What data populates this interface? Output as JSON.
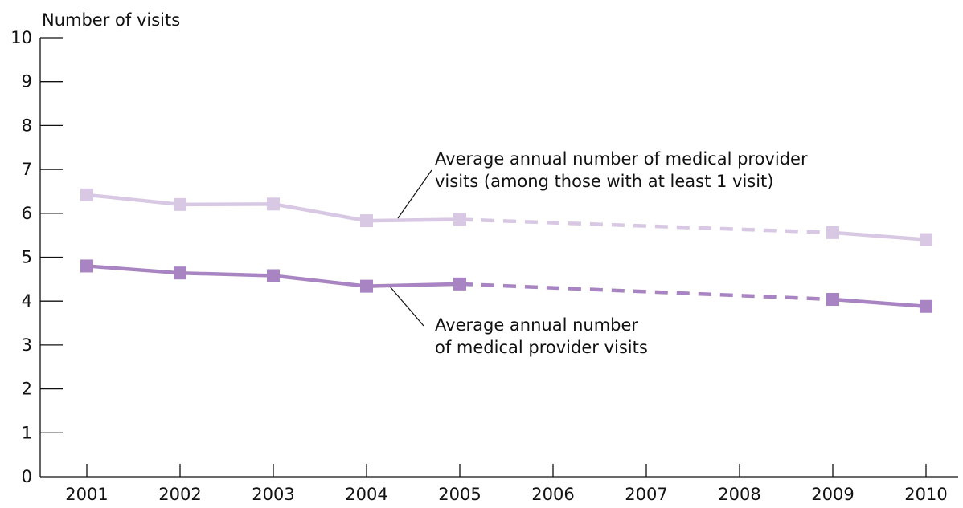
{
  "chart_data": {
    "type": "line",
    "ylabel": "Number of visits",
    "xlabel": "",
    "title": "",
    "ylim": [
      0,
      10
    ],
    "yticks": [
      "0",
      "1",
      "2",
      "3",
      "4",
      "5",
      "6",
      "7",
      "8",
      "9",
      "10"
    ],
    "categories": [
      "2001",
      "2002",
      "2003",
      "2004",
      "2005",
      "2006",
      "2007",
      "2008",
      "2009",
      "2010"
    ],
    "grid": false,
    "legend": "none (series labeled inline with leader lines)",
    "series": [
      {
        "name": "Average annual number of medical provider visits (among those with at least 1 visit)",
        "label_lines": [
          "Average annual number of medical provider",
          "visits (among those with at least 1 visit)"
        ],
        "color": "#d8c8e4",
        "values": [
          6.42,
          6.2,
          6.21,
          5.83,
          5.86,
          null,
          null,
          null,
          5.56,
          5.4
        ]
      },
      {
        "name": "Average annual number of medical provider visits",
        "label_lines": [
          "Average annual number",
          "of medical provider visits"
        ],
        "color": "#a884c2",
        "values": [
          4.8,
          4.64,
          4.58,
          4.34,
          4.39,
          null,
          null,
          null,
          4.04,
          3.88
        ]
      }
    ],
    "dashed_between": [
      "2005",
      "2009"
    ]
  }
}
